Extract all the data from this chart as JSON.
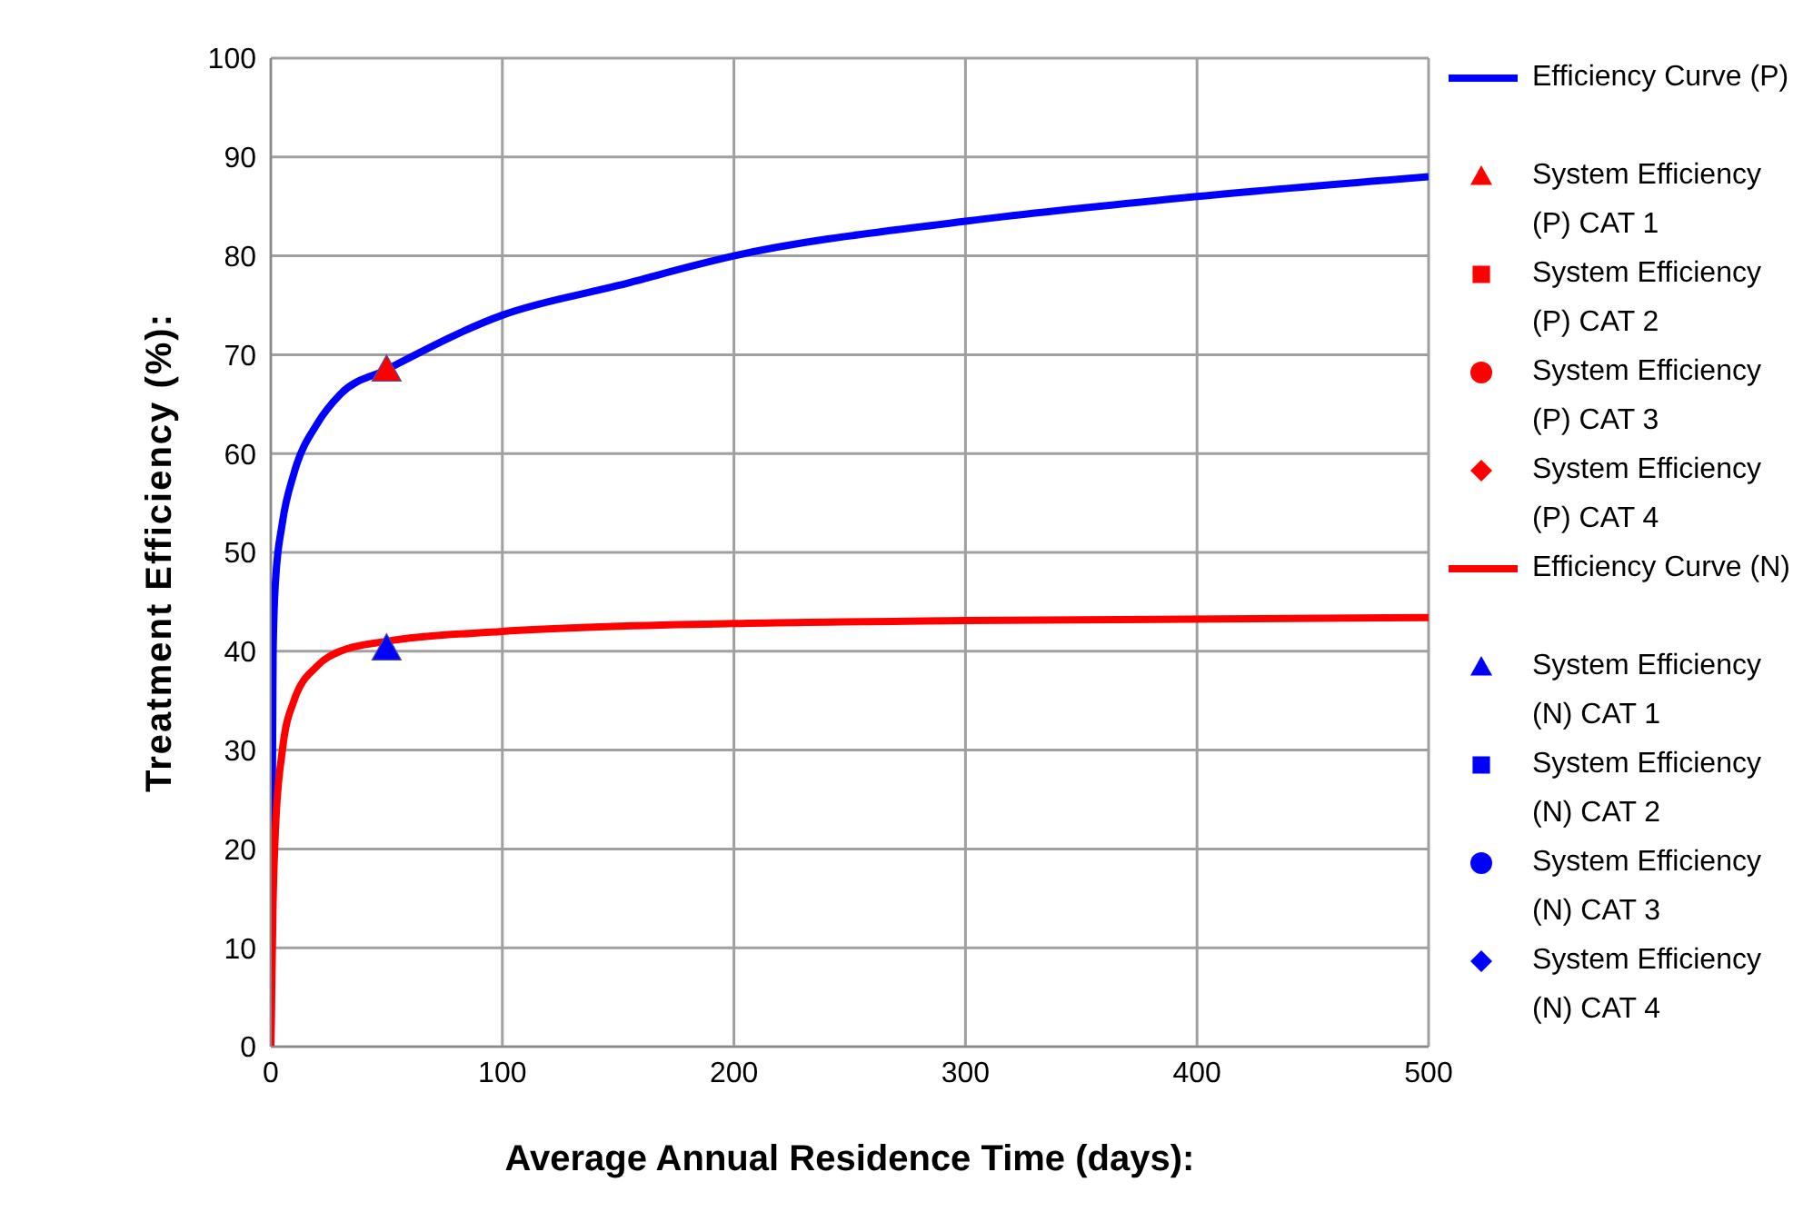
{
  "chart_data": {
    "type": "line",
    "xlabel": "Average Annual Residence Time (days):",
    "ylabel": "Treatment Efficiency (%):",
    "xlim": [
      0,
      500
    ],
    "xticks": [
      0,
      100,
      200,
      300,
      400,
      500
    ],
    "ylim": [
      0,
      100
    ],
    "yticks": [
      0,
      10,
      20,
      30,
      40,
      50,
      60,
      70,
      80,
      90,
      100
    ],
    "grid": true,
    "legend": "right",
    "series": [
      {
        "name": "Efficiency Curve (P)",
        "color": "#0000ff",
        "marker": "none",
        "x": [
          0,
          1,
          2,
          5,
          10,
          20,
          30,
          50,
          100,
          150,
          200,
          300,
          400,
          500
        ],
        "values": [
          0,
          40,
          47,
          53,
          58,
          63,
          66,
          68.5,
          74,
          77,
          80,
          83.5,
          86,
          88
        ]
      },
      {
        "name": "System Efficiency (P) CAT 1",
        "type": "scatter",
        "color": "#ff0000",
        "marker": "triangle",
        "x": [
          50
        ],
        "values": [
          68.5
        ]
      },
      {
        "name": "System Efficiency (P) CAT 2",
        "type": "scatter",
        "color": "#ff0000",
        "marker": "square"
      },
      {
        "name": "System Efficiency (P) CAT 3",
        "type": "scatter",
        "color": "#ff0000",
        "marker": "circle"
      },
      {
        "name": "System Efficiency (P) CAT 4",
        "type": "scatter",
        "color": "#ff0000",
        "marker": "diamond"
      },
      {
        "name": "Efficiency Curve (N)",
        "color": "#ff0000",
        "marker": "none",
        "x": [
          0,
          1,
          2,
          5,
          10,
          20,
          30,
          50,
          100,
          200,
          300,
          500
        ],
        "values": [
          0,
          15,
          22,
          30,
          35,
          38.5,
          40,
          41,
          42,
          42.8,
          43.1,
          43.4
        ]
      },
      {
        "name": "System Efficiency (N) CAT 1",
        "type": "scatter",
        "color": "#0000ff",
        "marker": "triangle",
        "x": [
          50
        ],
        "values": [
          40.3
        ]
      },
      {
        "name": "System Efficiency (N) CAT 2",
        "type": "scatter",
        "color": "#0000ff",
        "marker": "square"
      },
      {
        "name": "System Efficiency (N) CAT 3",
        "type": "scatter",
        "color": "#0000ff",
        "marker": "circle"
      },
      {
        "name": "System Efficiency (N) CAT 4",
        "type": "scatter",
        "color": "#0000ff",
        "marker": "diamond"
      }
    ]
  }
}
